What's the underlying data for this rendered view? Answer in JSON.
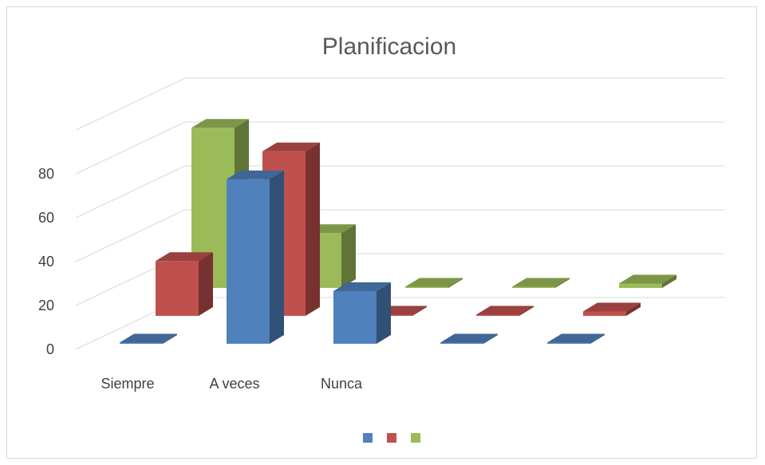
{
  "chart_data": {
    "type": "bar",
    "title": "Planificacion",
    "categories": [
      "Siempre",
      "A veces",
      "Nunca",
      "",
      ""
    ],
    "series": [
      {
        "values": [
          0,
          75,
          24,
          0,
          0
        ],
        "color": "#4f81bd"
      },
      {
        "values": [
          25,
          75,
          0,
          0,
          2
        ],
        "color": "#c0504d"
      },
      {
        "values": [
          73,
          25,
          0,
          0,
          2
        ],
        "color": "#9bbb59"
      }
    ],
    "y_ticks": [
      0,
      20,
      40,
      60,
      80
    ],
    "ylim": [
      0,
      100
    ],
    "grid": true,
    "legend_position": "bottom"
  }
}
